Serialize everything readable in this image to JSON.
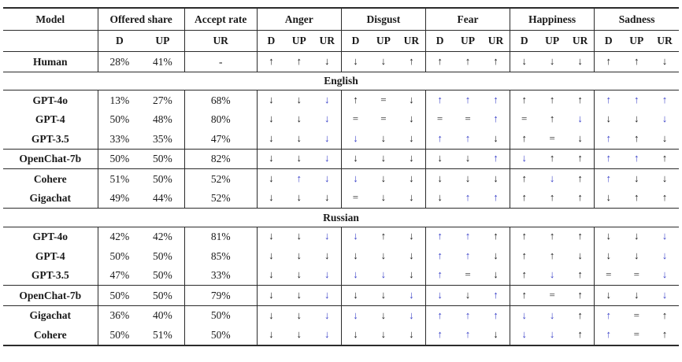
{
  "colors": {
    "arrow_black": "#1a1a1a",
    "arrow_blue": "#3a41c8",
    "border": "#2b2b2b",
    "background": "#ffffff"
  },
  "glyphs": {
    "up": "↑",
    "down": "↓",
    "equal": "="
  },
  "table": {
    "header": {
      "model_label": "Model",
      "groups": [
        {
          "label": "Offered share",
          "cols": [
            "D",
            "UP"
          ]
        },
        {
          "label": "Accept rate",
          "cols": [
            "UR"
          ]
        },
        {
          "label": "Anger",
          "cols": [
            "D",
            "UP",
            "UR"
          ]
        },
        {
          "label": "Disgust",
          "cols": [
            "D",
            "UP",
            "UR"
          ]
        },
        {
          "label": "Fear",
          "cols": [
            "D",
            "UP",
            "UR"
          ]
        },
        {
          "label": "Happiness",
          "cols": [
            "D",
            "UP",
            "UR"
          ]
        },
        {
          "label": "Sadness",
          "cols": [
            "D",
            "UP",
            "UR"
          ]
        }
      ]
    },
    "emotion_keys": [
      "anger",
      "disgust",
      "fear",
      "happiness",
      "sadness"
    ],
    "arrow_legend": "lowercase = black arrow, uppercase = blue arrow; u/U = up, d/D = down, e/E = equals",
    "human_row": {
      "model": "Human",
      "offered_d": "28%",
      "offered_up": "41%",
      "accept_ur": "-",
      "anger": [
        "u",
        "u",
        "d"
      ],
      "disgust": [
        "d",
        "d",
        "u"
      ],
      "fear": [
        "u",
        "u",
        "u"
      ],
      "happiness": [
        "d",
        "d",
        "d"
      ],
      "sadness": [
        "u",
        "u",
        "d"
      ]
    },
    "sections": [
      {
        "title": "English",
        "blocks": [
          [
            {
              "model": "GPT-4o",
              "offered_d": "13%",
              "offered_up": "27%",
              "accept_ur": "68%",
              "anger": [
                "d",
                "d",
                "D"
              ],
              "disgust": [
                "u",
                "e",
                "d"
              ],
              "fear": [
                "U",
                "U",
                "U"
              ],
              "happiness": [
                "u",
                "u",
                "u"
              ],
              "sadness": [
                "U",
                "U",
                "U"
              ]
            },
            {
              "model": "GPT-4",
              "offered_d": "50%",
              "offered_up": "48%",
              "accept_ur": "80%",
              "anger": [
                "d",
                "d",
                "D"
              ],
              "disgust": [
                "e",
                "e",
                "d"
              ],
              "fear": [
                "e",
                "e",
                "U"
              ],
              "happiness": [
                "e",
                "u",
                "D"
              ],
              "sadness": [
                "d",
                "d",
                "D"
              ]
            },
            {
              "model": "GPT-3.5",
              "offered_d": "33%",
              "offered_up": "35%",
              "accept_ur": "47%",
              "anger": [
                "d",
                "d",
                "D"
              ],
              "disgust": [
                "D",
                "d",
                "d"
              ],
              "fear": [
                "U",
                "U",
                "d"
              ],
              "happiness": [
                "u",
                "e",
                "d"
              ],
              "sadness": [
                "U",
                "u",
                "d"
              ]
            }
          ],
          [
            {
              "model": "OpenChat-7b",
              "offered_d": "50%",
              "offered_up": "50%",
              "accept_ur": "82%",
              "anger": [
                "d",
                "d",
                "D"
              ],
              "disgust": [
                "d",
                "d",
                "d"
              ],
              "fear": [
                "d",
                "d",
                "U"
              ],
              "happiness": [
                "D",
                "u",
                "u"
              ],
              "sadness": [
                "U",
                "U",
                "u"
              ]
            }
          ],
          [
            {
              "model": "Cohere",
              "offered_d": "51%",
              "offered_up": "50%",
              "accept_ur": "52%",
              "anger": [
                "d",
                "U",
                "D"
              ],
              "disgust": [
                "D",
                "d",
                "d"
              ],
              "fear": [
                "d",
                "d",
                "d"
              ],
              "happiness": [
                "u",
                "D",
                "u"
              ],
              "sadness": [
                "U",
                "d",
                "d"
              ]
            },
            {
              "model": "Gigachat",
              "offered_d": "49%",
              "offered_up": "44%",
              "accept_ur": "52%",
              "anger": [
                "d",
                "d",
                "d"
              ],
              "disgust": [
                "e",
                "d",
                "d"
              ],
              "fear": [
                "d",
                "U",
                "U"
              ],
              "happiness": [
                "u",
                "u",
                "u"
              ],
              "sadness": [
                "d",
                "u",
                "u"
              ]
            }
          ]
        ]
      },
      {
        "title": "Russian",
        "blocks": [
          [
            {
              "model": "GPT-4o",
              "offered_d": "42%",
              "offered_up": "42%",
              "accept_ur": "81%",
              "anger": [
                "d",
                "d",
                "D"
              ],
              "disgust": [
                "D",
                "u",
                "d"
              ],
              "fear": [
                "U",
                "U",
                "u"
              ],
              "happiness": [
                "u",
                "u",
                "u"
              ],
              "sadness": [
                "d",
                "d",
                "D"
              ]
            },
            {
              "model": "GPT-4",
              "offered_d": "50%",
              "offered_up": "50%",
              "accept_ur": "85%",
              "anger": [
                "d",
                "d",
                "d"
              ],
              "disgust": [
                "d",
                "d",
                "d"
              ],
              "fear": [
                "U",
                "U",
                "d"
              ],
              "happiness": [
                "u",
                "u",
                "d"
              ],
              "sadness": [
                "d",
                "d",
                "D"
              ]
            },
            {
              "model": "GPT-3.5",
              "offered_d": "47%",
              "offered_up": "50%",
              "accept_ur": "33%",
              "anger": [
                "d",
                "d",
                "D"
              ],
              "disgust": [
                "D",
                "D",
                "d"
              ],
              "fear": [
                "U",
                "e",
                "d"
              ],
              "happiness": [
                "u",
                "D",
                "u"
              ],
              "sadness": [
                "e",
                "e",
                "D"
              ]
            }
          ],
          [
            {
              "model": "OpenChat-7b",
              "offered_d": "50%",
              "offered_up": "50%",
              "accept_ur": "79%",
              "anger": [
                "d",
                "d",
                "D"
              ],
              "disgust": [
                "d",
                "d",
                "D"
              ],
              "fear": [
                "D",
                "d",
                "U"
              ],
              "happiness": [
                "u",
                "e",
                "u"
              ],
              "sadness": [
                "d",
                "d",
                "D"
              ]
            }
          ],
          [
            {
              "model": "Gigachat",
              "offered_d": "36%",
              "offered_up": "40%",
              "accept_ur": "50%",
              "anger": [
                "d",
                "d",
                "D"
              ],
              "disgust": [
                "D",
                "d",
                "D"
              ],
              "fear": [
                "U",
                "U",
                "U"
              ],
              "happiness": [
                "D",
                "D",
                "u"
              ],
              "sadness": [
                "U",
                "e",
                "u"
              ]
            },
            {
              "model": "Cohere",
              "offered_d": "50%",
              "offered_up": "51%",
              "accept_ur": "50%",
              "anger": [
                "d",
                "d",
                "D"
              ],
              "disgust": [
                "d",
                "d",
                "d"
              ],
              "fear": [
                "U",
                "U",
                "d"
              ],
              "happiness": [
                "D",
                "D",
                "u"
              ],
              "sadness": [
                "U",
                "e",
                "u"
              ]
            }
          ]
        ]
      }
    ]
  }
}
